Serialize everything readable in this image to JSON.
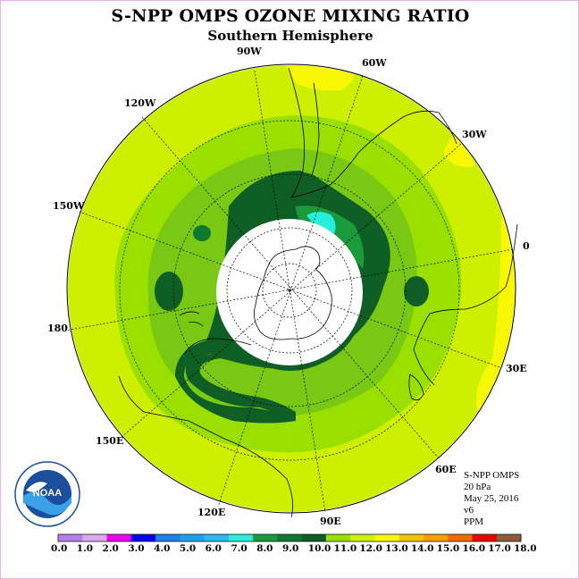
{
  "title": "S-NPP OMPS OZONE MIXING RATIO",
  "subtitle": "Southern Hemisphere",
  "longitude_labels": [
    "90W",
    "60W",
    "30W",
    "0",
    "30E",
    "60E",
    "90E",
    "120E",
    "150E",
    "180",
    "150W",
    "120W"
  ],
  "info": {
    "instrument": "S-NPP OMPS",
    "level": "20 hPa",
    "date": "May 25, 2016",
    "version": "v6",
    "units": "PPM"
  },
  "logo": {
    "icon": "noaa-logo-icon",
    "text": "NOAA"
  },
  "colorbar": {
    "ticks": [
      "0.0",
      "1.0",
      "2.0",
      "3.0",
      "4.0",
      "5.0",
      "6.0",
      "7.0",
      "8.0",
      "9.0",
      "10.0",
      "11.0",
      "12.0",
      "13.0",
      "14.0",
      "15.0",
      "16.0",
      "17.0",
      "18.0"
    ],
    "colors": [
      "#b57ff0",
      "#dca8f0",
      "#ee00ee",
      "#0000ee",
      "#1f7fe8",
      "#1fa0ee",
      "#26bcee",
      "#26eedc",
      "#1a9a3a",
      "#0f7a2f",
      "#0f5e26",
      "#99e000",
      "#ccf000",
      "#f8f800",
      "#f5c400",
      "#f4a000",
      "#f26a00",
      "#ee0000",
      "#8f5a3a"
    ]
  },
  "colors": {
    "yellow_green": "#ccf000",
    "light_green": "#99e000",
    "mid_green": "#78c814",
    "dark_green": "#0f7a2f",
    "darkest_green": "#0f5e26",
    "cyan": "#26eedc",
    "yellow": "#f8f800"
  }
}
